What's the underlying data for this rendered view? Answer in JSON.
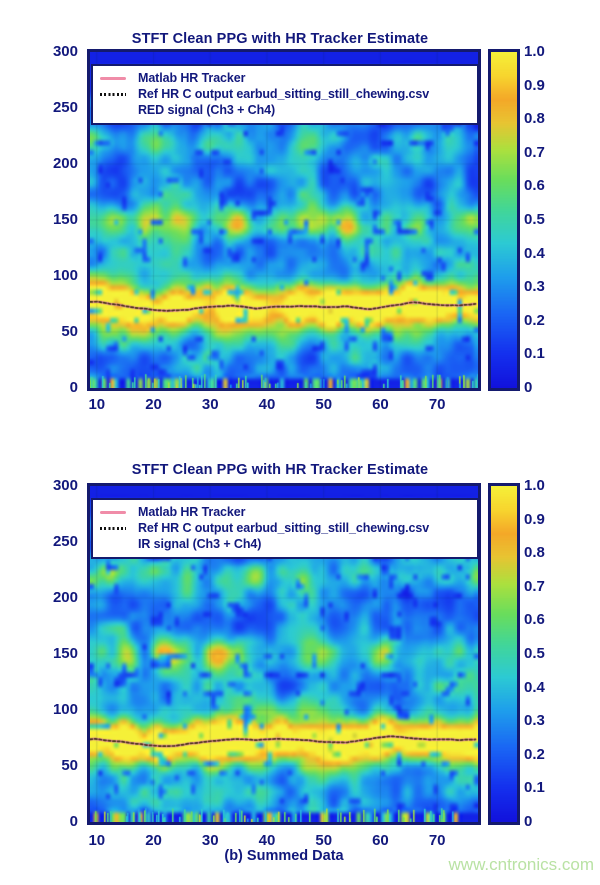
{
  "caption": "(b) Summed Data",
  "watermark": {
    "text": "www.cntronics.com",
    "color": "#b9e2a4"
  },
  "colors": {
    "navy_text": "#12187c",
    "plot_border": "#141a6e",
    "heatmap_background": "#1212dc",
    "legend_pink": "#f08ca8",
    "tracker_dark": "#3a2e08",
    "colorbar_top_yellow": "#f5f038"
  },
  "chart_data": [
    {
      "type": "heatmap",
      "title": "STFT Clean PPG with HR Tracker Estimate",
      "xlabel": "",
      "ylabel": "",
      "x_range": [
        8.8,
        77.2
      ],
      "y_range": [
        0,
        300
      ],
      "x_ticks": [
        10,
        20,
        30,
        40,
        50,
        60,
        70
      ],
      "y_ticks": [
        300,
        250,
        200,
        150,
        100,
        50,
        0
      ],
      "colorbar_range": [
        0,
        1
      ],
      "colorbar_ticks": [
        "1.0",
        "0.9",
        "0.8",
        "0.7",
        "0.6",
        "0.5",
        "0.4",
        "0.3",
        "0.2",
        "0.1",
        "0"
      ],
      "legend": [
        {
          "label": "Matlab HR Tracker",
          "marker": "pink-line"
        },
        {
          "label": "Ref HR C output earbud_sitting_still_chewing.csv",
          "marker": "black-dotted"
        },
        {
          "label": "RED signal (Ch3 + Ch4)",
          "marker": "none"
        }
      ],
      "series": [
        {
          "name": "HR tracker estimate (bpm)",
          "x": [
            10,
            14,
            18,
            22,
            26,
            30,
            34,
            38,
            42,
            46,
            50,
            54,
            58,
            62,
            66,
            70,
            74,
            78
          ],
          "y": [
            77,
            74,
            71,
            69,
            70,
            73,
            74,
            72,
            73,
            73,
            72,
            73,
            71,
            74,
            77,
            75,
            74,
            76
          ]
        }
      ],
      "render": {
        "seed": 101,
        "hr_sigma": 12,
        "hr_glow_sigma": 26,
        "mid_band_center": 148,
        "mid_band_sigma": 11,
        "high_band_center": 220,
        "high_band_sigma": 9
      }
    },
    {
      "type": "heatmap",
      "title": "STFT Clean PPG with HR Tracker Estimate",
      "xlabel": "",
      "ylabel": "",
      "x_range": [
        8.8,
        77.2
      ],
      "y_range": [
        0,
        300
      ],
      "x_ticks": [
        10,
        20,
        30,
        40,
        50,
        60,
        70
      ],
      "y_ticks": [
        300,
        250,
        200,
        150,
        100,
        50,
        0
      ],
      "colorbar_range": [
        0,
        1
      ],
      "colorbar_ticks": [
        "1.0",
        "0.9",
        "0.8",
        "0.7",
        "0.6",
        "0.5",
        "0.4",
        "0.3",
        "0.2",
        "0.1",
        "0"
      ],
      "legend": [
        {
          "label": "Matlab HR Tracker",
          "marker": "pink-line"
        },
        {
          "label": "Ref HR C output earbud_sitting_still_chewing.csv",
          "marker": "black-dotted"
        },
        {
          "label": "IR signal (Ch3 + Ch4)",
          "marker": "none"
        }
      ],
      "series": [
        {
          "name": "HR tracker estimate (bpm)",
          "x": [
            10,
            14,
            18,
            22,
            26,
            30,
            34,
            38,
            42,
            46,
            50,
            54,
            58,
            62,
            66,
            70,
            74,
            78
          ],
          "y": [
            74,
            72,
            70,
            68,
            70,
            72,
            73,
            72,
            73,
            72,
            71,
            70,
            73,
            76,
            74,
            73,
            72,
            73
          ]
        }
      ],
      "render": {
        "seed": 202,
        "hr_sigma": 12,
        "hr_glow_sigma": 26,
        "mid_band_center": 150,
        "mid_band_sigma": 11,
        "high_band_center": 218,
        "high_band_sigma": 9
      }
    }
  ]
}
